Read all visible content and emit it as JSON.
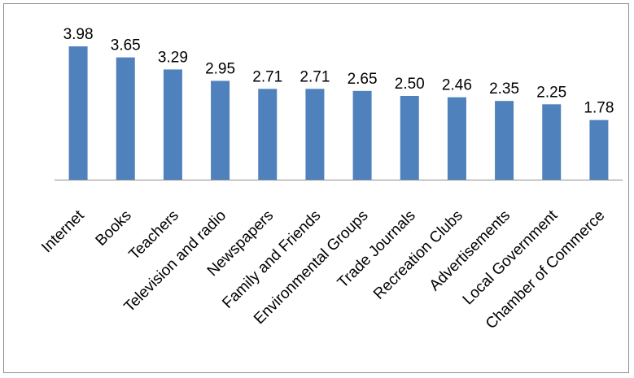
{
  "chart_data": {
    "type": "bar",
    "categories": [
      "Internet",
      "Books",
      "Teachers",
      "Television and radio",
      "Newspapers",
      "Family and Friends",
      "Environmental Groups",
      "Trade Journals",
      "Recreation Clubs",
      "Advertisements",
      "Local Government",
      "Chamber of Commerce"
    ],
    "values": [
      3.98,
      3.65,
      3.29,
      2.95,
      2.71,
      2.71,
      2.65,
      2.5,
      2.46,
      2.35,
      2.25,
      1.78
    ],
    "value_labels": [
      "3.98",
      "3.65",
      "3.29",
      "2.95",
      "2.71",
      "2.71",
      "2.65",
      "2.50",
      "2.46",
      "2.35",
      "2.25",
      "1.78"
    ],
    "bar_color": "#4f81bd",
    "title": "",
    "xlabel": "",
    "ylabel": "",
    "ylim": [
      0,
      4
    ],
    "grid": false,
    "legend": "none"
  }
}
